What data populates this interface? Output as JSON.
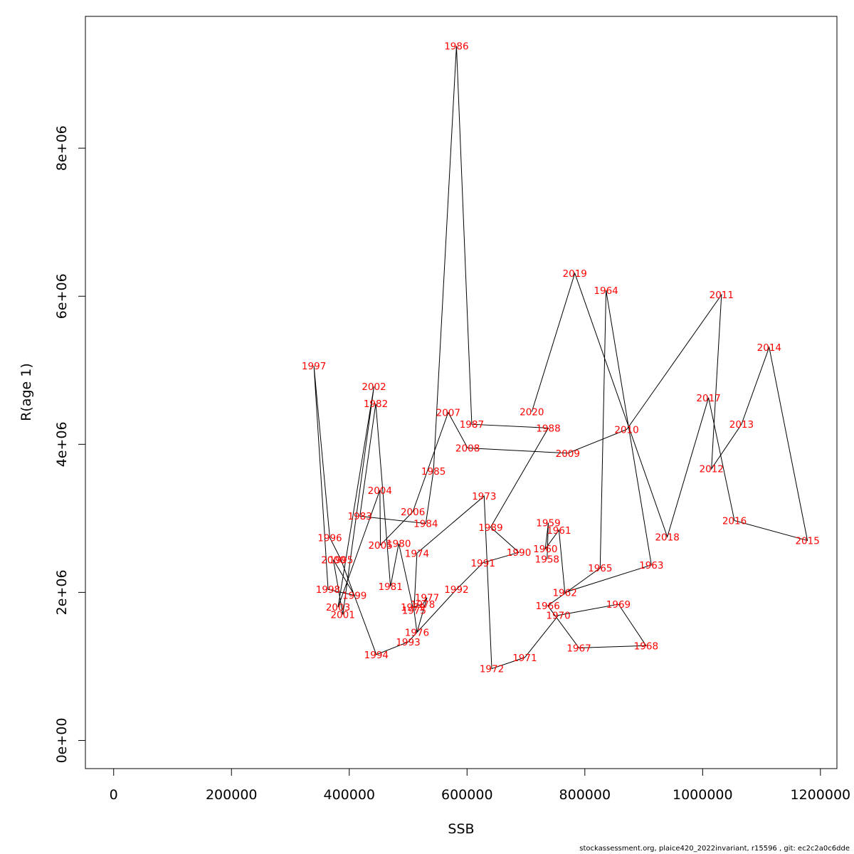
{
  "footer": "stockassessment.org, plaice420_2022invariant, r15596 , git: ec2c2a0c6dde",
  "chart_data": {
    "type": "line",
    "xlabel": "SSB",
    "ylabel": "R(age 1)",
    "xlim": [
      -48000,
      1228000
    ],
    "ylim": [
      -380000,
      9780000
    ],
    "x_ticks": [
      0,
      200000,
      400000,
      600000,
      800000,
      1000000,
      1200000
    ],
    "x_tick_labels": [
      "0",
      "200000",
      "400000",
      "600000",
      "800000",
      "1000000",
      "1200000"
    ],
    "y_ticks": [
      0,
      2000000,
      4000000,
      6000000,
      8000000
    ],
    "y_tick_labels": [
      "0e+00",
      "2e+06",
      "4e+06",
      "6e+06",
      "8e+06"
    ],
    "grid": false,
    "line_color": "#000000",
    "label_color": "#ff0000",
    "series": [
      {
        "points": [
          {
            "label": "1958",
            "x": 736000,
            "y": 2450000
          },
          {
            "label": "1959",
            "x": 738000,
            "y": 2940000
          },
          {
            "label": "1960",
            "x": 733000,
            "y": 2590000
          },
          {
            "label": "1961",
            "x": 756000,
            "y": 2840000
          },
          {
            "label": "1962",
            "x": 766000,
            "y": 2000000
          },
          {
            "label": "1963",
            "x": 913000,
            "y": 2370000
          },
          {
            "label": "1964",
            "x": 836000,
            "y": 6080000
          },
          {
            "label": "1965",
            "x": 826000,
            "y": 2330000
          },
          {
            "label": "1966",
            "x": 737000,
            "y": 1820000
          },
          {
            "label": "1967",
            "x": 790000,
            "y": 1250000
          },
          {
            "label": "1968",
            "x": 904000,
            "y": 1280000
          },
          {
            "label": "1969",
            "x": 857000,
            "y": 1840000
          },
          {
            "label": "1970",
            "x": 755000,
            "y": 1690000
          },
          {
            "label": "1971",
            "x": 698000,
            "y": 1120000
          },
          {
            "label": "1972",
            "x": 642000,
            "y": 970000
          },
          {
            "label": "1973",
            "x": 629000,
            "y": 3300000
          },
          {
            "label": "1974",
            "x": 515000,
            "y": 2530000
          },
          {
            "label": "1975",
            "x": 510000,
            "y": 1760000
          },
          {
            "label": "1976",
            "x": 515000,
            "y": 1460000
          },
          {
            "label": "1977",
            "x": 532000,
            "y": 1930000
          },
          {
            "label": "1978",
            "x": 525000,
            "y": 1840000
          },
          {
            "label": "1979",
            "x": 508000,
            "y": 1800000
          },
          {
            "label": "1980",
            "x": 484000,
            "y": 2660000
          },
          {
            "label": "1981",
            "x": 470000,
            "y": 2080000
          },
          {
            "label": "1982",
            "x": 445000,
            "y": 4550000
          },
          {
            "label": "1983",
            "x": 418000,
            "y": 3030000
          },
          {
            "label": "1984",
            "x": 530000,
            "y": 2930000
          },
          {
            "label": "1985",
            "x": 543000,
            "y": 3640000
          },
          {
            "label": "1986",
            "x": 582000,
            "y": 9380000
          },
          {
            "label": "1987",
            "x": 608000,
            "y": 4270000
          },
          {
            "label": "1988",
            "x": 738000,
            "y": 4220000
          },
          {
            "label": "1989",
            "x": 640000,
            "y": 2880000
          },
          {
            "label": "1990",
            "x": 688000,
            "y": 2540000
          },
          {
            "label": "1991",
            "x": 627000,
            "y": 2400000
          },
          {
            "label": "1992",
            "x": 582000,
            "y": 2040000
          },
          {
            "label": "1993",
            "x": 500000,
            "y": 1330000
          },
          {
            "label": "1994",
            "x": 446000,
            "y": 1160000
          },
          {
            "label": "1995",
            "x": 386000,
            "y": 2440000
          },
          {
            "label": "1996",
            "x": 367000,
            "y": 2740000
          },
          {
            "label": "1997",
            "x": 340000,
            "y": 5060000
          },
          {
            "label": "1998",
            "x": 364000,
            "y": 2040000
          },
          {
            "label": "1999",
            "x": 409000,
            "y": 1960000
          },
          {
            "label": "2000",
            "x": 373000,
            "y": 2440000
          },
          {
            "label": "2001",
            "x": 389000,
            "y": 1700000
          },
          {
            "label": "2002",
            "x": 442000,
            "y": 4780000
          },
          {
            "label": "2003",
            "x": 381000,
            "y": 1800000
          },
          {
            "label": "2004",
            "x": 452000,
            "y": 3380000
          },
          {
            "label": "2005",
            "x": 453000,
            "y": 2640000
          },
          {
            "label": "2006",
            "x": 508000,
            "y": 3090000
          },
          {
            "label": "2007",
            "x": 568000,
            "y": 4430000
          },
          {
            "label": "2008",
            "x": 601000,
            "y": 3950000
          },
          {
            "label": "2009",
            "x": 771000,
            "y": 3880000
          },
          {
            "label": "2010",
            "x": 871000,
            "y": 4200000
          },
          {
            "label": "2011",
            "x": 1032000,
            "y": 6020000
          },
          {
            "label": "2012",
            "x": 1015000,
            "y": 3670000
          },
          {
            "label": "2013",
            "x": 1066000,
            "y": 4270000
          },
          {
            "label": "2014",
            "x": 1113000,
            "y": 5310000
          },
          {
            "label": "2015",
            "x": 1178000,
            "y": 2700000
          },
          {
            "label": "2016",
            "x": 1054000,
            "y": 2970000
          },
          {
            "label": "2017",
            "x": 1010000,
            "y": 4630000
          },
          {
            "label": "2018",
            "x": 940000,
            "y": 2750000
          },
          {
            "label": "2019",
            "x": 783000,
            "y": 6310000
          },
          {
            "label": "2020",
            "x": 710000,
            "y": 4440000
          }
        ]
      }
    ]
  }
}
